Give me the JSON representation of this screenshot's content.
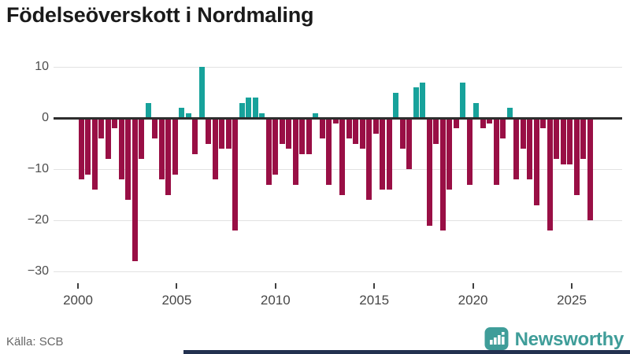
{
  "title": "Födelseöverskott i Nordmaling",
  "source": "Källa: SCB",
  "logo": {
    "text": "Newsworthy"
  },
  "colors": {
    "positive_bar": "#17a29b",
    "negative_bar": "#990f45",
    "logo_teal": "#3f9d99",
    "bottom_strip_navy": "#233150",
    "zero_line": "#2d2d2d",
    "gridline": "#e2e2e2"
  },
  "chart_data": {
    "type": "bar",
    "title": "Födelseöverskott i Nordmaling",
    "xlabel": "",
    "ylabel": "",
    "x_start_year": 2000,
    "periods_per_year": 3,
    "x_ticks": [
      2000,
      2005,
      2010,
      2015,
      2020,
      2025
    ],
    "y_ticks": [
      10,
      0,
      -10,
      -20,
      -30
    ],
    "ylim": [
      -30,
      10
    ],
    "grid": true,
    "legend": false,
    "values": [
      -12,
      -11,
      -14,
      -4,
      -8,
      -2,
      -12,
      -16,
      -28,
      -8,
      3,
      -4,
      -12,
      -15,
      -11,
      2,
      1,
      -7,
      10,
      -5,
      -12,
      -6,
      -6,
      -22,
      3,
      4,
      4,
      1,
      -13,
      -11,
      -5,
      -6,
      -13,
      -7,
      -7,
      1,
      -4,
      -13,
      -1,
      -15,
      -4,
      -5,
      -6,
      -16,
      -3,
      -14,
      -14,
      5,
      -6,
      -10,
      6,
      7,
      -21,
      -5,
      -22,
      -14,
      -2,
      7,
      -13,
      3,
      -2,
      -1,
      -13,
      -4,
      2,
      -12,
      -6,
      -12,
      -17,
      -2,
      -22,
      -8,
      -9,
      -9,
      -15,
      -8,
      -20
    ]
  }
}
